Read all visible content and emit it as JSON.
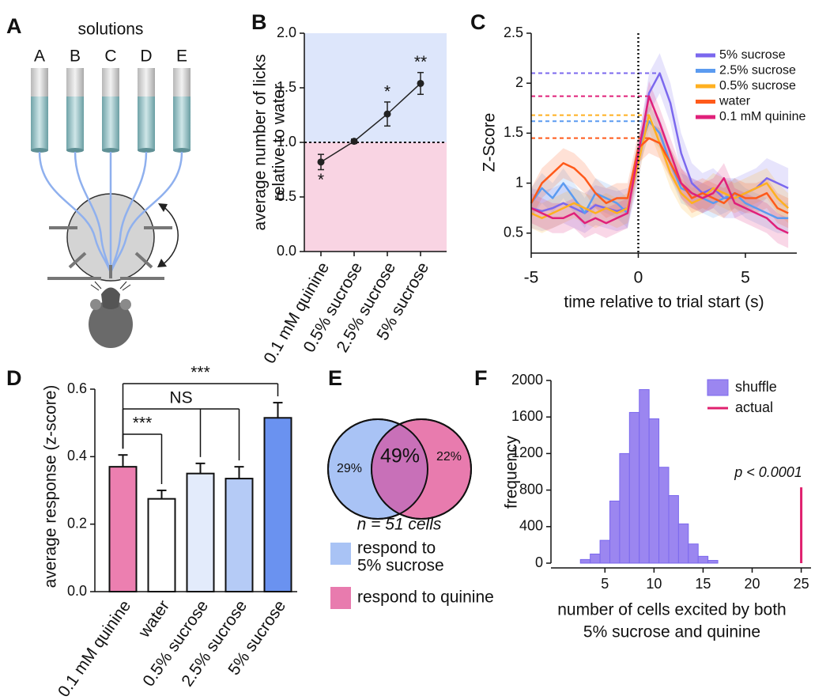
{
  "diagram": {
    "panel": "A",
    "title": "solutions",
    "labels": [
      "A",
      "B",
      "C",
      "D",
      "E"
    ]
  },
  "chart_data": [
    {
      "panel": "B",
      "type": "line",
      "categories": [
        "0.1 mM quinine",
        "0.5% sucrose",
        "2.5% sucrose",
        "5% sucrose"
      ],
      "values": [
        0.82,
        1.01,
        1.26,
        1.54
      ],
      "errors": [
        0.07,
        0.02,
        0.11,
        0.1
      ],
      "significance": [
        "*",
        null,
        "*",
        "**"
      ],
      "y_label": [
        "average number of licks",
        "relative to water"
      ],
      "ylim": [
        0,
        2
      ],
      "yticks": [
        {
          "value": 0,
          "label": "0.0"
        },
        0.5,
        {
          "value": 1,
          "label": "1.0"
        },
        1.5,
        {
          "value": 2,
          "label": "2.0"
        }
      ],
      "reference_line": 1,
      "color": "#222222",
      "above_color": "#dde6fb",
      "below_color": "#f9d4e3"
    },
    {
      "panel": "C",
      "type": "line",
      "x": [
        -5,
        -4.5,
        -4,
        -3.5,
        -3,
        -2.5,
        -2,
        -1.5,
        -1,
        -0.5,
        0,
        0.5,
        1,
        1.5,
        2,
        2.5,
        3,
        3.5,
        4,
        4.5,
        5,
        5.5,
        6,
        6.5,
        7
      ],
      "series": [
        {
          "name": "5% sucrose",
          "color": "#7b68ee",
          "sem": 0.2,
          "values": [
            0.75,
            0.72,
            0.75,
            0.8,
            0.75,
            0.7,
            0.78,
            0.75,
            0.72,
            0.75,
            1.2,
            1.9,
            2.1,
            1.8,
            1.3,
            1.0,
            0.9,
            0.95,
            0.85,
            0.85,
            0.9,
            0.95,
            1.05,
            1.0,
            0.95
          ]
        },
        {
          "name": "2.5% sucrose",
          "color": "#5b9bf0",
          "sem": 0.15,
          "values": [
            0.8,
            0.95,
            0.85,
            1.0,
            0.85,
            0.7,
            0.9,
            0.85,
            0.8,
            0.7,
            1.3,
            1.62,
            1.5,
            1.2,
            0.95,
            0.9,
            0.85,
            0.8,
            0.85,
            0.9,
            0.8,
            0.75,
            0.7,
            0.65,
            0.65
          ]
        },
        {
          "name": "0.5% sucrose",
          "color": "#ffb020",
          "sem": 0.15,
          "values": [
            0.7,
            0.65,
            0.7,
            0.75,
            0.8,
            0.75,
            0.7,
            0.75,
            0.7,
            0.75,
            1.2,
            1.68,
            1.4,
            1.1,
            0.9,
            0.8,
            0.85,
            0.95,
            0.9,
            0.85,
            0.9,
            0.95,
            1.0,
            0.85,
            0.75
          ]
        },
        {
          "name": "water",
          "color": "#ff5a1a",
          "sem": 0.15,
          "values": [
            0.8,
            1.0,
            1.1,
            1.2,
            1.15,
            1.05,
            0.9,
            0.8,
            0.85,
            0.85,
            1.35,
            1.45,
            1.4,
            1.2,
            1.0,
            0.85,
            0.9,
            0.85,
            0.8,
            0.9,
            0.85,
            0.85,
            0.9,
            0.75,
            0.7
          ]
        },
        {
          "name": "0.1 mM quinine",
          "color": "#e0207a",
          "sem": 0.15,
          "values": [
            0.75,
            0.7,
            0.65,
            0.65,
            0.7,
            0.6,
            0.65,
            0.6,
            0.65,
            0.7,
            1.3,
            1.87,
            1.6,
            1.3,
            1.0,
            0.9,
            0.85,
            0.9,
            1.05,
            0.8,
            0.75,
            0.7,
            0.65,
            0.55,
            0.5
          ]
        }
      ],
      "xlim": [
        -5,
        7.4
      ],
      "xticks": [
        -5,
        0,
        5
      ],
      "ylim": [
        0.3,
        2.5
      ],
      "yticks": [
        0.5,
        1,
        1.5,
        2,
        2.5
      ],
      "x_label": "time relative to trial start (s)",
      "y_label": "Z-Score",
      "reference_line_x": 0
    },
    {
      "panel": "D",
      "type": "bar",
      "categories": [
        "0.1 mM quinine",
        "water",
        "0.5% sucrose",
        "2.5% sucrose",
        "5% sucrose"
      ],
      "values": [
        0.37,
        0.275,
        0.35,
        0.335,
        0.515
      ],
      "errors": [
        0.035,
        0.025,
        0.03,
        0.035,
        0.045
      ],
      "colors": [
        "#ec7fb0",
        "#ffffff",
        "#e3ebfb",
        "#b5cbf6",
        "#6a92f0"
      ],
      "ylim": [
        0,
        0.6
      ],
      "yticks": [
        {
          "value": 0,
          "label": "0.0"
        },
        0.2,
        0.4,
        0.6
      ],
      "y_label": "average response (z-score)",
      "comparisons": [
        {
          "label": "***",
          "categories": [
            "0.1 mM quinine",
            "5% sucrose"
          ]
        },
        {
          "label": "NS",
          "categories": [
            "0.1 mM quinine",
            "0.5% sucrose",
            "2.5% sucrose"
          ]
        },
        {
          "label": "***",
          "categories": [
            "0.1 mM quinine",
            "water"
          ]
        }
      ]
    },
    {
      "panel": "E",
      "type": "venn",
      "values": [
        29,
        49,
        22
      ],
      "value_labels": [
        "29%",
        "49%",
        "22%"
      ],
      "annotation": "n = 51 cells",
      "legend": [
        {
          "label": [
            "respond to",
            "5% sucrose"
          ],
          "color": "#a9c3f5"
        },
        {
          "label": [
            "respond to quinine"
          ],
          "color": "#e87bae"
        }
      ],
      "overlap_color": "#c870b8"
    },
    {
      "panel": "F",
      "type": "histogram",
      "bins": [
        2.5,
        3.5,
        4.5,
        5.5,
        6.5,
        7.5,
        8.5,
        9.5,
        10.5,
        11.5,
        12.5,
        13.5,
        14.5,
        15.5,
        16.5
      ],
      "values": [
        40,
        100,
        250,
        680,
        1200,
        1650,
        1900,
        1580,
        1050,
        740,
        430,
        210,
        75,
        30
      ],
      "color": "#9b86f0",
      "edge_color": "#7b68ee",
      "series_name": "shuffle",
      "actual": {
        "name": "actual",
        "x": 25,
        "value": 830,
        "color": "#e0206e"
      },
      "annotation": "p < 0.0001",
      "xlim": [
        -0.5,
        26
      ],
      "xticks": [
        5,
        10,
        15,
        20,
        25
      ],
      "ylim": [
        0,
        2000
      ],
      "yticks": [
        0,
        400,
        800,
        1200,
        1600,
        2000
      ],
      "x_label": [
        "number of cells excited by both",
        "5% sucrose and quinine"
      ],
      "y_label": "frequency"
    }
  ]
}
